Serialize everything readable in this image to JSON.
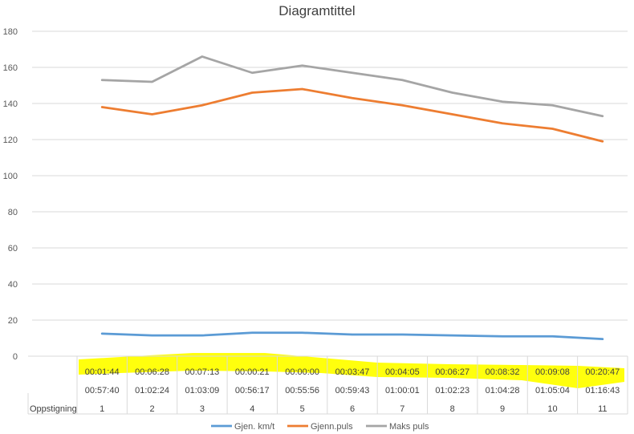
{
  "chart_data": {
    "type": "line",
    "title": "Diagramtittel",
    "ylim": [
      0,
      180
    ],
    "yticks": [
      0,
      20,
      40,
      60,
      80,
      100,
      120,
      140,
      160,
      180
    ],
    "grid": "horizontal",
    "legend_position": "bottom",
    "categories": [
      "1",
      "2",
      "3",
      "4",
      "5",
      "6",
      "7",
      "8",
      "9",
      "10",
      "11"
    ],
    "category_rows": [
      [
        "00:01:44",
        "00:06:28",
        "00:07:13",
        "00:00:21",
        "00:00:00",
        "00:03:47",
        "00:04:05",
        "00:06:27",
        "00:08:32",
        "00:09:08",
        "00:20:47"
      ],
      [
        "00:57:40",
        "01:02:24",
        "01:03:09",
        "00:56:17",
        "00:55:56",
        "00:59:43",
        "01:00:01",
        "01:02:23",
        "01:04:28",
        "01:05:04",
        "01:16:43"
      ]
    ],
    "axis_row_label": "Oppstigning",
    "highlight_color": "#ffff00",
    "series": [
      {
        "name": "Gjen. km/t",
        "color": "#5b9bd5",
        "values": [
          12.5,
          11.5,
          11.5,
          13,
          13,
          12,
          12,
          11.5,
          11,
          11,
          9.5
        ]
      },
      {
        "name": "Gjenn.puls",
        "color": "#ed7d31",
        "values": [
          138,
          134,
          139,
          146,
          148,
          143,
          139,
          134,
          129,
          126,
          119
        ]
      },
      {
        "name": "Maks puls",
        "color": "#a5a5a5",
        "values": [
          153,
          152,
          166,
          157,
          161,
          157,
          153,
          146,
          141,
          139,
          133
        ]
      }
    ]
  }
}
